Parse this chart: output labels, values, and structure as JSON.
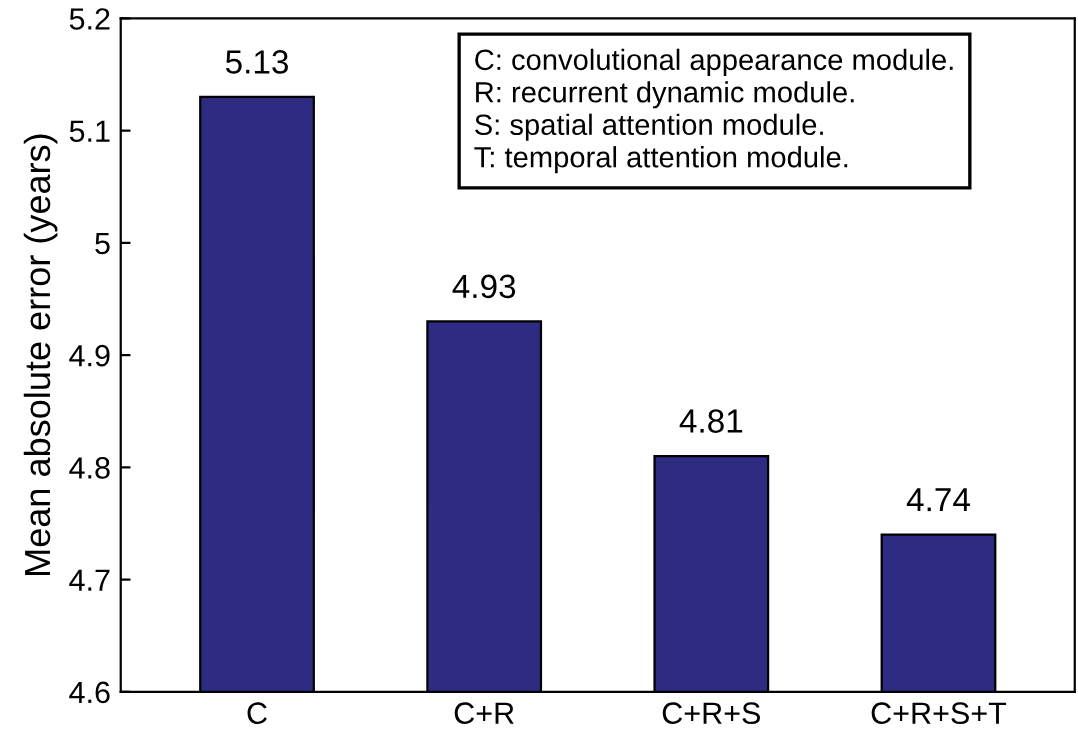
{
  "chart_data": {
    "type": "bar",
    "ylabel": "Mean absolute error (years)",
    "categories": [
      "C",
      "C+R",
      "C+R+S",
      "C+R+S+T"
    ],
    "values": [
      5.13,
      4.93,
      4.81,
      4.74
    ],
    "color": "#2e2b83",
    "ylim": [
      4.6,
      5.2
    ],
    "yticks": [
      4.6,
      4.7,
      4.8,
      4.9,
      5,
      5.1,
      5.2
    ],
    "grid": false,
    "data_labels": true,
    "annotations": [
      "C: convolutional appearance module.",
      "R: recurrent dynamic module.",
      "S: spatial attention module.",
      "T: temporal attention module."
    ]
  }
}
